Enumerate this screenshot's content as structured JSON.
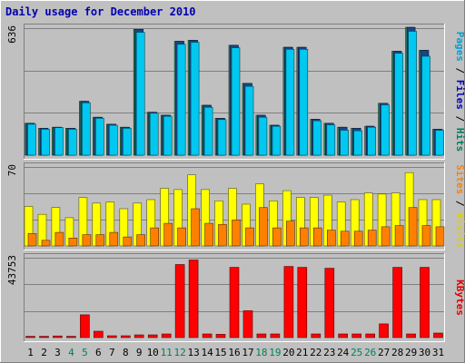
{
  "chart_data": {
    "type": "bar",
    "title": "Daily usage for December 2010",
    "days": [
      "1",
      "2",
      "3",
      "4",
      "5",
      "6",
      "7",
      "8",
      "9",
      "10",
      "11",
      "12",
      "13",
      "14",
      "15",
      "16",
      "17",
      "18",
      "19",
      "20",
      "21",
      "22",
      "23",
      "24",
      "25",
      "26",
      "27",
      "28",
      "29",
      "30",
      "31"
    ],
    "weekend_days": [
      "4",
      "5",
      "11",
      "12",
      "18",
      "19",
      "25",
      "26"
    ],
    "panels": [
      {
        "id": "hits-files-pages",
        "ymax": 636,
        "ymax_label": "636",
        "axis_label_parts": [
          {
            "text": "Pages",
            "color": "#00a0d0"
          },
          {
            "text": " / ",
            "color": "#000000"
          },
          {
            "text": "Files",
            "color": "#0000c0"
          },
          {
            "text": " / ",
            "color": "#000000"
          },
          {
            "text": "Hits",
            "color": "#008060"
          }
        ],
        "series": [
          {
            "name": "Hits",
            "color": "#2e8a67",
            "values": [
              160,
              135,
              140,
              135,
              270,
              190,
              155,
              140,
              630,
              215,
              200,
              570,
              575,
              250,
              185,
              550,
              360,
              200,
              150,
              540,
              540,
              180,
              160,
              140,
              135,
              145,
              260,
              520,
              640,
              525,
              130
            ]
          },
          {
            "name": "Files",
            "color": "#1b4586",
            "values": [
              160,
              135,
              140,
              135,
              270,
              190,
              155,
              140,
              630,
              215,
              200,
              570,
              575,
              250,
              185,
              550,
              360,
              200,
              150,
              540,
              540,
              180,
              160,
              140,
              135,
              145,
              260,
              520,
              640,
              525,
              130
            ]
          },
          {
            "name": "Pages",
            "color": "#00c8f0",
            "values": [
              155,
              130,
              138,
              130,
              262,
              185,
              150,
              135,
              615,
              210,
              195,
              555,
              565,
              240,
              178,
              538,
              345,
              190,
              145,
              530,
              530,
              172,
              152,
              125,
              122,
              140,
              252,
              510,
              620,
              495,
              125
            ]
          }
        ]
      },
      {
        "id": "visits-sites",
        "ymax": 70,
        "ymax_label": "70",
        "axis_label_parts": [
          {
            "text": "Sites",
            "color": "#ff8000"
          },
          {
            "text": " / ",
            "color": "#000000"
          },
          {
            "text": "Visits",
            "color": "#e0d000"
          }
        ],
        "series": [
          {
            "name": "Visits",
            "color": "#ffff00",
            "values": [
              35,
              28,
              34,
              25,
              43,
              38,
              39,
              33,
              38,
              41,
              51,
              50,
              63,
              50,
              40,
              51,
              37,
              55,
              40,
              49,
              43,
              43,
              45,
              39,
              41,
              47,
              46,
              47,
              65,
              41,
              41
            ]
          },
          {
            "name": "Sites",
            "color": "#ff8000",
            "values": [
              11,
              5,
              12,
              7,
              10,
              10,
              12,
              8,
              10,
              16,
              20,
              16,
              33,
              20,
              19,
              23,
              16,
              34,
              16,
              22,
              16,
              16,
              14,
              13,
              13,
              14,
              17,
              18,
              34,
              18,
              17
            ]
          }
        ]
      },
      {
        "id": "kbytes",
        "ymax": 43753,
        "ymax_label": "43753",
        "axis_label_parts": [
          {
            "text": "KBytes",
            "color": "#e00000"
          }
        ],
        "series": [
          {
            "name": "KBytes",
            "color": "#ff0000",
            "values": [
              700,
              700,
              900,
              700,
              12500,
              3500,
              1000,
              1000,
              1500,
              1500,
              2000,
              40000,
              42500,
              2000,
              1800,
              38500,
              14700,
              2000,
              2000,
              39000,
              38500,
              2000,
              38000,
              2000,
              2000,
              2000,
              7500,
              38500,
              2000,
              38500,
              2500
            ]
          }
        ]
      }
    ]
  },
  "colors": {
    "frame_bg": "#c0c0c0",
    "plot_bg": "#c0c0c0",
    "title": "#0000b0",
    "day_label": "#000000",
    "weekend_label": "#00805a",
    "grid": "#808080"
  }
}
